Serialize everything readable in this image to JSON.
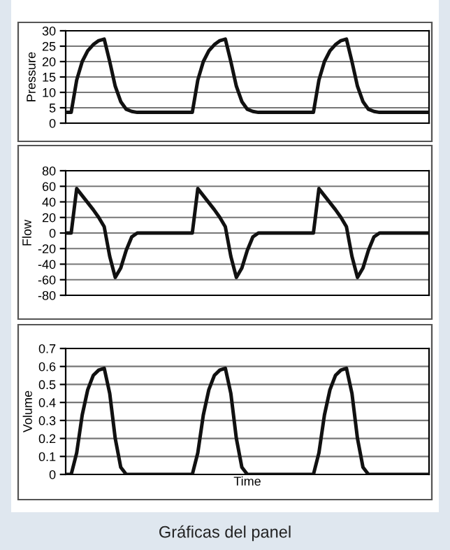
{
  "chart_data": [
    {
      "type": "line",
      "ylabel": "Pressure",
      "ylim": [
        0,
        30
      ],
      "yticks": [
        0,
        5,
        10,
        15,
        20,
        25,
        30
      ],
      "grid": "y",
      "tick_labels": "y",
      "categories": [
        null,
        null,
        null,
        null,
        null,
        null,
        null,
        null,
        null,
        null,
        null,
        null,
        null,
        null,
        null,
        null,
        null,
        null,
        null,
        null,
        null,
        null,
        null,
        null,
        null,
        null,
        null,
        null,
        null,
        null,
        null,
        null,
        null,
        null,
        null,
        null,
        null,
        null,
        null,
        null,
        null,
        null,
        null,
        null,
        null,
        null,
        null,
        null,
        null,
        null,
        null,
        null,
        null,
        null,
        null,
        null,
        null,
        null,
        null,
        null,
        null,
        null,
        null,
        null,
        null,
        null,
        null
      ],
      "series": [
        {
          "color": "#111111",
          "values": [
            3.5,
            3.5,
            14,
            20,
            23.5,
            25.5,
            26.8,
            27.3,
            20,
            12,
            7,
            4.5,
            3.8,
            3.5,
            3.5,
            3.5,
            3.5,
            3.5,
            3.5,
            3.5,
            3.5,
            3.5,
            3.5,
            3.5,
            14,
            20,
            23.5,
            25.5,
            26.8,
            27.3,
            20,
            12,
            7,
            4.5,
            3.8,
            3.5,
            3.5,
            3.5,
            3.5,
            3.5,
            3.5,
            3.5,
            3.5,
            3.5,
            3.5,
            3.5,
            14,
            20,
            23.5,
            25.5,
            26.8,
            27.3,
            20,
            12,
            7,
            4.5,
            3.8,
            3.5,
            3.5,
            3.5,
            3.5,
            3.5,
            3.5,
            3.5,
            3.5,
            3.5,
            3.5
          ]
        }
      ]
    },
    {
      "type": "line",
      "ylabel": "Flow",
      "ylim": [
        -80,
        80
      ],
      "yticks": [
        -80,
        -60,
        -40,
        -20,
        0,
        20,
        40,
        60,
        80
      ],
      "grid": "y",
      "tick_labels": "y",
      "categories": [
        null,
        null,
        null,
        null,
        null,
        null,
        null,
        null,
        null,
        null,
        null,
        null,
        null,
        null,
        null,
        null,
        null,
        null,
        null,
        null,
        null,
        null,
        null,
        null,
        null,
        null,
        null,
        null,
        null,
        null,
        null,
        null,
        null,
        null,
        null,
        null,
        null,
        null,
        null,
        null,
        null,
        null,
        null,
        null,
        null,
        null,
        null,
        null,
        null,
        null,
        null,
        null,
        null,
        null,
        null,
        null,
        null,
        null,
        null,
        null,
        null,
        null,
        null,
        null,
        null,
        null,
        null
      ],
      "series": [
        {
          "color": "#111111",
          "values": [
            0,
            0,
            57,
            48,
            39,
            30,
            20,
            8,
            -30,
            -57,
            -45,
            -22,
            -5,
            0,
            0,
            0,
            0,
            0,
            0,
            0,
            0,
            0,
            0,
            0,
            57,
            48,
            39,
            30,
            20,
            8,
            -30,
            -57,
            -45,
            -22,
            -5,
            0,
            0,
            0,
            0,
            0,
            0,
            0,
            0,
            0,
            0,
            0,
            57,
            48,
            39,
            30,
            20,
            8,
            -30,
            -57,
            -45,
            -22,
            -5,
            0,
            0,
            0,
            0,
            0,
            0,
            0,
            0,
            0,
            0
          ]
        }
      ]
    },
    {
      "type": "line",
      "xlabel": "Time",
      "ylabel": "Volume",
      "ylim": [
        0,
        0.7
      ],
      "yticks": [
        0,
        0.1,
        0.2,
        0.3,
        0.4,
        0.5,
        0.6,
        0.7
      ],
      "grid": "y",
      "tick_labels": "y",
      "annotations": [
        "Gráficas del panel"
      ],
      "categories": [
        null,
        null,
        null,
        null,
        null,
        null,
        null,
        null,
        null,
        null,
        null,
        null,
        null,
        null,
        null,
        null,
        null,
        null,
        null,
        null,
        null,
        null,
        null,
        null,
        null,
        null,
        null,
        null,
        null,
        null,
        null,
        null,
        null,
        null,
        null,
        null,
        null,
        null,
        null,
        null,
        null,
        null,
        null,
        null,
        null,
        null,
        null,
        null,
        null,
        null,
        null,
        null,
        null,
        null,
        null,
        null,
        null,
        null,
        null,
        null,
        null,
        null,
        null,
        null,
        null,
        null,
        null
      ],
      "series": [
        {
          "color": "#111111",
          "values": [
            0,
            0,
            0.12,
            0.33,
            0.47,
            0.55,
            0.58,
            0.59,
            0.45,
            0.2,
            0.04,
            0,
            0,
            0,
            0,
            0,
            0,
            0,
            0,
            0,
            0,
            0,
            0,
            0,
            0.12,
            0.33,
            0.47,
            0.55,
            0.58,
            0.59,
            0.45,
            0.2,
            0.04,
            0,
            0,
            0,
            0,
            0,
            0,
            0,
            0,
            0,
            0,
            0,
            0,
            0,
            0.12,
            0.33,
            0.47,
            0.55,
            0.58,
            0.59,
            0.45,
            0.2,
            0.04,
            0,
            0,
            0,
            0,
            0,
            0,
            0,
            0,
            0,
            0,
            0,
            0
          ]
        }
      ]
    }
  ]
}
